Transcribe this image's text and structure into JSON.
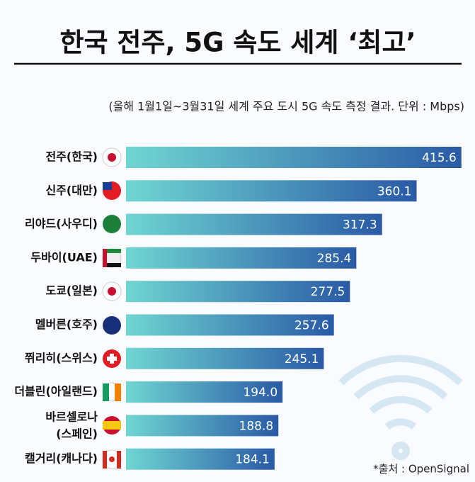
{
  "chart_data": {
    "type": "bar",
    "orientation": "horizontal",
    "title": "한국 전주, 5G 속도 세계 ‘최고’",
    "subtitle": "(올해 1월1일~3월31일 세계 주요 도시 5G 속도 측정 결과. 단위 :  Mbps)",
    "source": "*출처 :  OpenSignal",
    "categories": [
      "전주(한국)",
      "신주(대만)",
      "리야드(사우디)",
      "두바이(UAE)",
      "도쿄(일본)",
      "멜버른(호주)",
      "쮜리히(스위스)",
      "더블린(아일랜드)",
      "바르셀로나\n(스페인)",
      "캘거리(캐나다)"
    ],
    "values": [
      415.6,
      360.1,
      317.3,
      285.4,
      277.5,
      257.6,
      245.1,
      194.0,
      188.8,
      184.1
    ],
    "value_labels": [
      "415.6",
      "360.1",
      "317.3",
      "285.4",
      "277.5",
      "257.6",
      "245.1",
      "194.0",
      "188.8",
      "184.1"
    ],
    "colors": [
      "#6fd6d2",
      "#2a5aa6"
    ]
  }
}
